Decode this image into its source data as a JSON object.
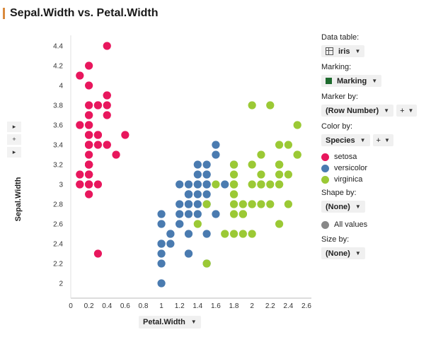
{
  "title": "Sepal.Width vs. Petal.Width",
  "left_controls": {
    "arrow_up": "▸",
    "plus": "+",
    "arrow_down": "▸"
  },
  "panel": {
    "data_table_label": "Data table:",
    "data_table_value": "iris",
    "marking_label": "Marking:",
    "marking_value": "Marking",
    "marking_color": "#1e6b2e",
    "marker_by_label": "Marker by:",
    "marker_by_value": "(Row Number)",
    "color_by_label": "Color by:",
    "color_by_value": "Species",
    "plus": "+",
    "legend": [
      {
        "name": "setosa",
        "color": "#e8175d"
      },
      {
        "name": "versicolor",
        "color": "#4a7bb0"
      },
      {
        "name": "virginica",
        "color": "#9bc935"
      }
    ],
    "shape_by_label": "Shape by:",
    "shape_by_value": "(None)",
    "all_values": "All values",
    "all_values_color": "#888888",
    "size_by_label": "Size by:",
    "size_by_value": "(None)"
  },
  "chart_data": {
    "type": "scatter",
    "title": "Sepal.Width vs. Petal.Width",
    "xlabel": "Petal.Width",
    "ylabel": "Sepal.Width",
    "xlim": [
      0,
      2.6
    ],
    "ylim": [
      2,
      4.4
    ],
    "x_ticks": [
      "0",
      "0.2",
      "0.4",
      "0.6",
      "0.8",
      "1",
      "1.2",
      "1.4",
      "1.6",
      "1.8",
      "2",
      "2.2",
      "2.4",
      "2.6"
    ],
    "y_ticks": [
      "2",
      "2.2",
      "2.4",
      "2.6",
      "2.8",
      "3",
      "3.2",
      "3.4",
      "3.6",
      "3.8",
      "4",
      "4.2",
      "4.4"
    ],
    "series": [
      {
        "name": "setosa",
        "color": "#e8175d",
        "points": [
          [
            0.2,
            3.5
          ],
          [
            0.2,
            3.0
          ],
          [
            0.2,
            3.2
          ],
          [
            0.2,
            3.1
          ],
          [
            0.2,
            3.6
          ],
          [
            0.4,
            3.9
          ],
          [
            0.3,
            3.4
          ],
          [
            0.2,
            3.4
          ],
          [
            0.2,
            2.9
          ],
          [
            0.1,
            3.1
          ],
          [
            0.2,
            3.7
          ],
          [
            0.2,
            3.4
          ],
          [
            0.1,
            3.0
          ],
          [
            0.1,
            3.0
          ],
          [
            0.2,
            4.0
          ],
          [
            0.4,
            4.4
          ],
          [
            0.4,
            3.9
          ],
          [
            0.3,
            3.5
          ],
          [
            0.3,
            3.8
          ],
          [
            0.3,
            3.8
          ],
          [
            0.2,
            3.4
          ],
          [
            0.4,
            3.7
          ],
          [
            0.2,
            3.6
          ],
          [
            0.5,
            3.3
          ],
          [
            0.2,
            3.4
          ],
          [
            0.2,
            3.0
          ],
          [
            0.4,
            3.4
          ],
          [
            0.2,
            3.5
          ],
          [
            0.2,
            3.4
          ],
          [
            0.2,
            3.2
          ],
          [
            0.2,
            3.1
          ],
          [
            0.4,
            3.4
          ],
          [
            0.1,
            4.1
          ],
          [
            0.2,
            4.2
          ],
          [
            0.2,
            3.1
          ],
          [
            0.2,
            3.2
          ],
          [
            0.2,
            3.5
          ],
          [
            0.1,
            3.6
          ],
          [
            0.2,
            3.0
          ],
          [
            0.2,
            3.4
          ],
          [
            0.3,
            3.5
          ],
          [
            0.3,
            2.3
          ],
          [
            0.2,
            3.2
          ],
          [
            0.6,
            3.5
          ],
          [
            0.4,
            3.8
          ],
          [
            0.3,
            3.0
          ],
          [
            0.2,
            3.8
          ],
          [
            0.2,
            3.2
          ],
          [
            0.2,
            3.7
          ],
          [
            0.2,
            3.3
          ]
        ]
      },
      {
        "name": "versicolor",
        "color": "#4a7bb0",
        "points": [
          [
            1.4,
            3.2
          ],
          [
            1.5,
            3.2
          ],
          [
            1.5,
            3.1
          ],
          [
            1.3,
            2.3
          ],
          [
            1.5,
            2.8
          ],
          [
            1.3,
            2.8
          ],
          [
            1.6,
            3.3
          ],
          [
            1.0,
            2.4
          ],
          [
            1.3,
            2.9
          ],
          [
            1.4,
            2.7
          ],
          [
            1.0,
            2.0
          ],
          [
            1.5,
            3.0
          ],
          [
            1.0,
            2.2
          ],
          [
            1.4,
            2.9
          ],
          [
            1.3,
            2.9
          ],
          [
            1.4,
            3.1
          ],
          [
            1.5,
            3.0
          ],
          [
            1.0,
            2.7
          ],
          [
            1.5,
            2.2
          ],
          [
            1.1,
            2.5
          ],
          [
            1.8,
            3.2
          ],
          [
            1.3,
            2.8
          ],
          [
            1.5,
            2.5
          ],
          [
            1.2,
            2.8
          ],
          [
            1.3,
            2.9
          ],
          [
            1.4,
            3.0
          ],
          [
            1.4,
            2.8
          ],
          [
            1.7,
            3.0
          ],
          [
            1.5,
            2.9
          ],
          [
            1.0,
            2.6
          ],
          [
            1.1,
            2.4
          ],
          [
            1.0,
            2.4
          ],
          [
            1.2,
            2.7
          ],
          [
            1.6,
            2.7
          ],
          [
            1.5,
            3.0
          ],
          [
            1.6,
            3.4
          ],
          [
            1.5,
            3.1
          ],
          [
            1.3,
            2.3
          ],
          [
            1.3,
            3.0
          ],
          [
            1.3,
            2.5
          ],
          [
            1.2,
            2.6
          ],
          [
            1.4,
            3.0
          ],
          [
            1.2,
            2.6
          ],
          [
            1.0,
            2.3
          ],
          [
            1.3,
            2.7
          ],
          [
            1.2,
            3.0
          ],
          [
            1.3,
            2.9
          ],
          [
            1.3,
            2.9
          ],
          [
            1.1,
            2.5
          ],
          [
            1.3,
            2.8
          ]
        ]
      },
      {
        "name": "virginica",
        "color": "#9bc935",
        "points": [
          [
            2.5,
            3.3
          ],
          [
            1.9,
            2.7
          ],
          [
            2.1,
            3.0
          ],
          [
            1.8,
            2.9
          ],
          [
            2.2,
            3.0
          ],
          [
            2.1,
            3.0
          ],
          [
            1.7,
            2.5
          ],
          [
            1.8,
            2.9
          ],
          [
            1.8,
            2.5
          ],
          [
            2.5,
            3.6
          ],
          [
            2.0,
            3.2
          ],
          [
            1.9,
            2.7
          ],
          [
            2.1,
            3.0
          ],
          [
            2.0,
            2.5
          ],
          [
            2.4,
            2.8
          ],
          [
            2.3,
            3.2
          ],
          [
            1.8,
            3.0
          ],
          [
            2.2,
            3.8
          ],
          [
            2.3,
            2.6
          ],
          [
            1.5,
            2.2
          ],
          [
            2.3,
            3.2
          ],
          [
            2.0,
            2.8
          ],
          [
            2.0,
            2.8
          ],
          [
            1.8,
            2.7
          ],
          [
            2.1,
            3.3
          ],
          [
            1.8,
            3.2
          ],
          [
            1.8,
            2.8
          ],
          [
            1.8,
            3.0
          ],
          [
            2.1,
            2.8
          ],
          [
            1.6,
            3.0
          ],
          [
            1.9,
            2.8
          ],
          [
            2.0,
            3.8
          ],
          [
            2.2,
            2.8
          ],
          [
            1.5,
            2.8
          ],
          [
            1.4,
            2.6
          ],
          [
            2.3,
            3.0
          ],
          [
            2.4,
            3.4
          ],
          [
            1.8,
            3.1
          ],
          [
            1.8,
            3.0
          ],
          [
            2.1,
            3.1
          ],
          [
            2.4,
            3.1
          ],
          [
            2.3,
            3.1
          ],
          [
            1.9,
            2.7
          ],
          [
            2.3,
            3.2
          ],
          [
            2.5,
            3.3
          ],
          [
            2.3,
            3.0
          ],
          [
            1.9,
            2.5
          ],
          [
            2.0,
            3.0
          ],
          [
            2.3,
            3.4
          ],
          [
            1.8,
            3.0
          ]
        ]
      }
    ]
  }
}
